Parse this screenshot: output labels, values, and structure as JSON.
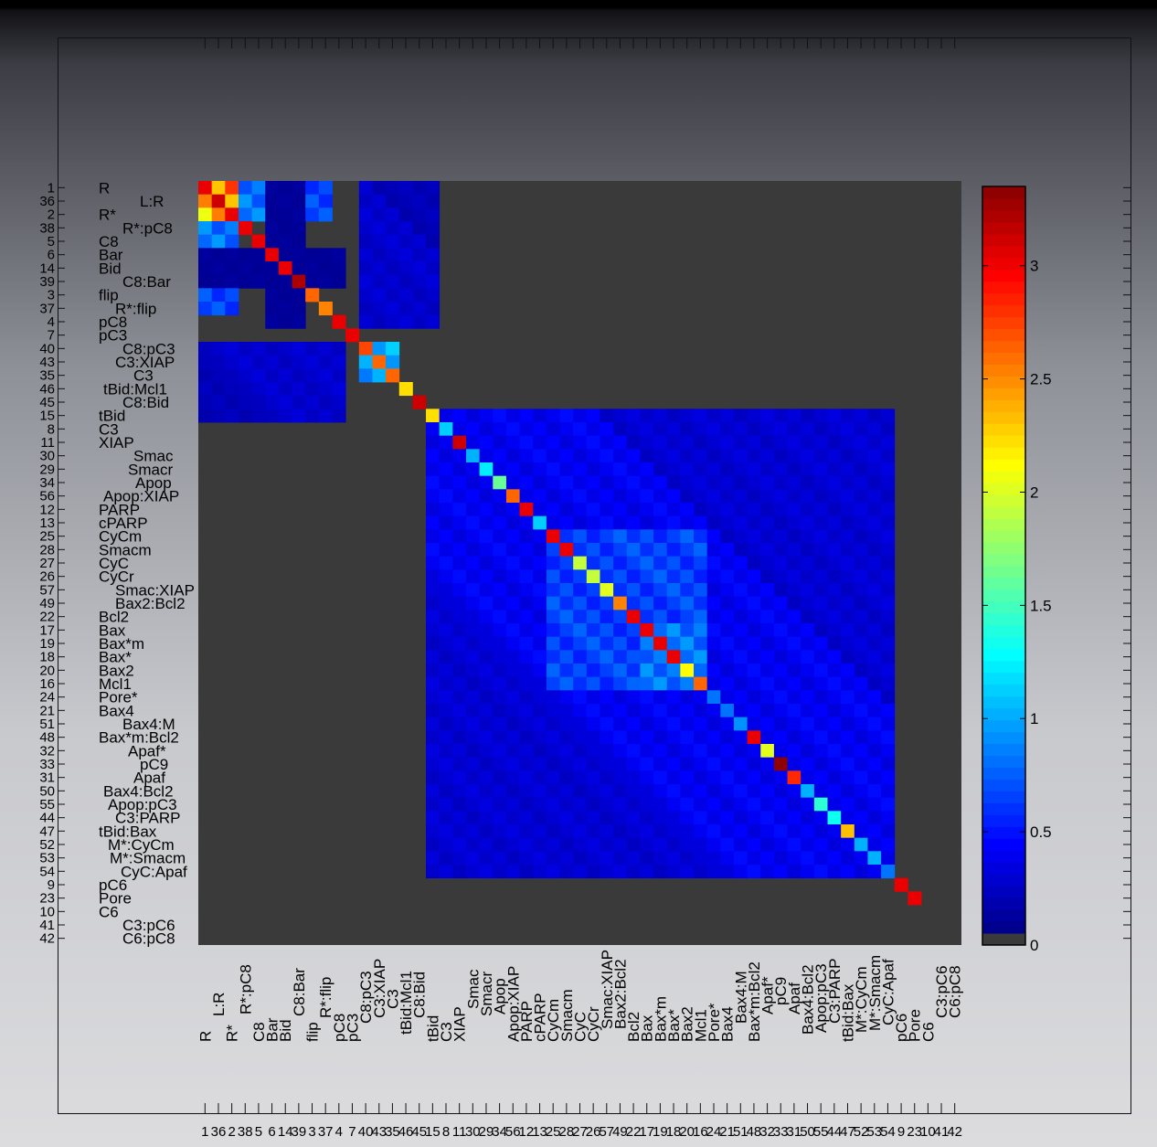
{
  "chart_data": {
    "type": "heatmap",
    "title": "",
    "species_order": [
      "1",
      "36",
      "2",
      "38",
      "5",
      "6",
      "14",
      "39",
      "3",
      "37",
      "4",
      "7",
      "40",
      "43",
      "35",
      "46",
      "45",
      "15",
      "8",
      "11",
      "30",
      "29",
      "34",
      "56",
      "12",
      "13",
      "25",
      "28",
      "27",
      "26",
      "57",
      "49",
      "22",
      "17",
      "19",
      "18",
      "20",
      "16",
      "24",
      "21",
      "51",
      "48",
      "32",
      "33",
      "31",
      "50",
      "55",
      "44",
      "47",
      "52",
      "53",
      "54",
      "9",
      "23",
      "10",
      "41",
      "42"
    ],
    "row_labels": [
      "R",
      "L:R",
      "R*",
      "R*:pC8",
      "C8",
      "Bar",
      "Bid",
      "C8:Bar",
      "flip",
      "R*:flip",
      "pC8",
      "pC3",
      "C8:pC3",
      "C3:XIAP",
      "C3",
      "tBid:Mcl1",
      "C8:Bid",
      "tBid",
      "C3",
      "XIAP",
      "Smac",
      "Smacr",
      "Apop",
      "Apop:XIAP",
      "PARP",
      "cPARP",
      "CyCm",
      "Smacm",
      "CyC",
      "CyCr",
      "Smac:XIAP",
      "Bax2:Bcl2",
      "Bcl2",
      "Bax",
      "Bax*m",
      "Bax*",
      "Bax2",
      "Mcl1",
      "Pore*",
      "Bax4",
      "Bax4:M",
      "Bax*m:Bcl2",
      "Apaf*",
      "pC9",
      "Apaf",
      "Bax4:Bcl2",
      "Apop:pC3",
      "C3:PARP",
      "tBid:Bax",
      "M*:CyCm",
      "M*:Smacm",
      "CyC:Apaf",
      "pC6",
      "Pore",
      "C6",
      "C3:pC6",
      "C6:pC8"
    ],
    "colorbar": {
      "range": [
        0,
        3.35
      ],
      "ticks": [
        "0",
        "0.5",
        "1",
        "1.5",
        "2",
        "2.5",
        "3"
      ]
    },
    "diagonal_values": [
      3.0,
      3.1,
      3.0,
      3.0,
      3.0,
      3.0,
      3.0,
      3.2,
      2.6,
      2.5,
      3.0,
      3.0,
      2.7,
      2.6,
      2.6,
      2.2,
      3.1,
      2.2,
      1.1,
      3.1,
      1.0,
      1.2,
      1.6,
      2.6,
      3.0,
      1.1,
      3.0,
      3.0,
      1.9,
      1.9,
      2.0,
      2.5,
      3.0,
      3.0,
      3.0,
      3.0,
      2.1,
      2.6,
      0.8,
      0.8,
      0.9,
      3.0,
      2.0,
      3.3,
      2.8,
      1.0,
      1.4,
      1.3,
      2.3,
      1.0,
      1.0,
      0.8,
      3.0,
      3.0,
      0,
      0,
      0
    ],
    "block_values": [
      {
        "rows": [
          0,
          2
        ],
        "cols": [
          0,
          2
        ],
        "value": 3.0
      },
      {
        "rows": [
          0,
          2
        ],
        "cols": [
          3,
          4
        ],
        "value": 1.0
      },
      {
        "rows": [
          0,
          2
        ],
        "cols": [
          8,
          9
        ],
        "value": 0.8
      },
      {
        "rows": [
          0,
          10
        ],
        "cols": [
          5,
          7
        ],
        "value": 0.1
      },
      {
        "rows": [
          0,
          10
        ],
        "cols": [
          12,
          17
        ],
        "value": 0.3
      },
      {
        "rows": [
          12,
          14
        ],
        "cols": [
          12,
          14
        ],
        "value": 1.2
      },
      {
        "rows": [
          17,
          51
        ],
        "cols": [
          17,
          51
        ],
        "value": 0.45
      },
      {
        "rows": [
          26,
          37
        ],
        "cols": [
          26,
          37
        ],
        "value": 0.75
      },
      {
        "rows": [
          33,
          37
        ],
        "cols": [
          33,
          37
        ],
        "value": 1.0
      }
    ],
    "background_value_label": "0"
  }
}
